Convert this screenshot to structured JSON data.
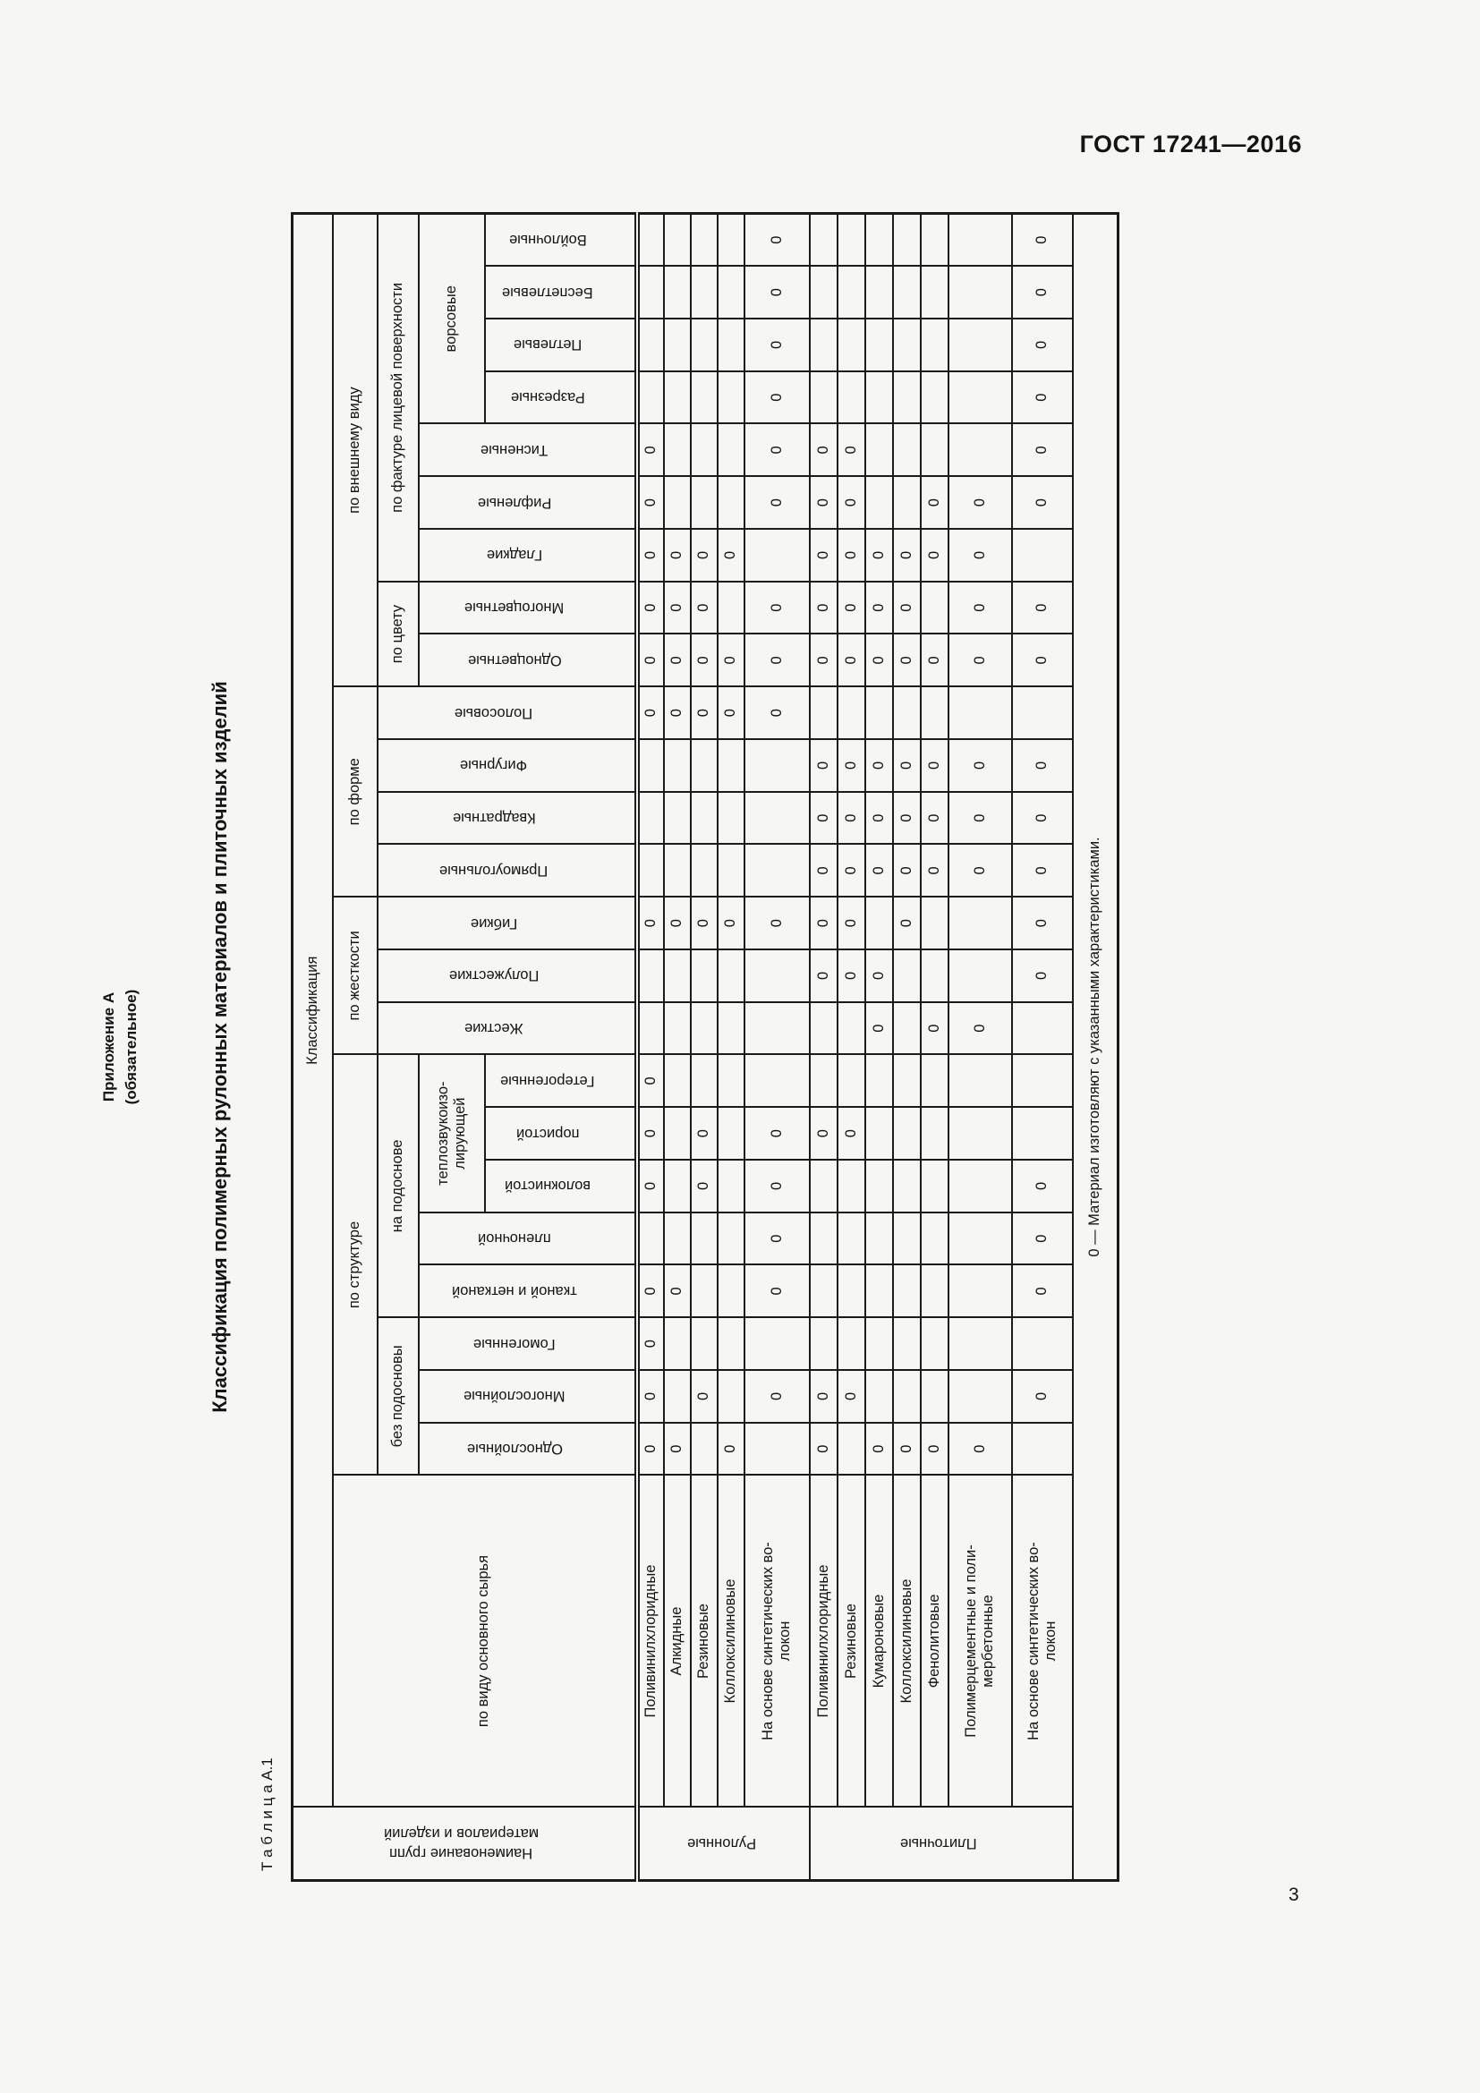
{
  "page": {
    "doc_number": "ГОСТ 17241—2016",
    "page_number": "3"
  },
  "appendix": {
    "title": "Приложение А",
    "subtitle": "(обязательное)"
  },
  "main_title": "Классификация полимерных рулонных материалов и плиточных изделий",
  "table_caption": "Т а б л и ц а   А.1",
  "table": {
    "mark": "0",
    "footnote": "0 — Материал изготовляют с указанными характеристиками.",
    "col1_header_lines": [
      "Наименование групп",
      "материалов и изделий"
    ],
    "col2_header": "по виду основного сырья",
    "classification": "Классификация",
    "groups": {
      "structure": "по структуре",
      "rigidity": "по жесткости",
      "shape": "по форме",
      "appearance": "по внешнему виду",
      "no_backing": "без подосновы",
      "on_backing": "на подоснове",
      "heat_sound_lines": [
        "теплозвукоизо-",
        "лирующей"
      ],
      "color": "по цвету",
      "texture": "по фактуре лицевой поверхности",
      "pile": "ворсовые"
    },
    "columns": [
      "Однослойные",
      "Многослойные",
      "Гомогенные",
      "тканой и нетканой",
      "пленочной",
      "волокнистой",
      "пористой",
      "Гетерогенные",
      "Жесткие",
      "Полужесткие",
      "Гибкие",
      "Прямоугольные",
      "Квадратные",
      "Фигурные",
      "Полосовые",
      "Одноцветные",
      "Многоцветные",
      "Гладкие",
      "Рифленые",
      "Тисненые",
      "Разрезные",
      "Петлевые",
      "Беспетлевые",
      "Войлочные"
    ],
    "row_groups": [
      {
        "name": "Рулонные",
        "materials": [
          {
            "name_lines": [
              "Поливинилхлоридные"
            ],
            "h": 30,
            "marks": [
              1,
              1,
              1,
              1,
              0,
              1,
              1,
              1,
              0,
              0,
              1,
              0,
              0,
              0,
              1,
              1,
              1,
              1,
              1,
              1,
              0,
              0,
              0,
              0
            ]
          },
          {
            "name_lines": [
              "Алкидные"
            ],
            "h": 30,
            "marks": [
              1,
              0,
              0,
              1,
              0,
              0,
              0,
              0,
              0,
              0,
              1,
              0,
              0,
              0,
              1,
              1,
              1,
              1,
              0,
              0,
              0,
              0,
              0,
              0
            ]
          },
          {
            "name_lines": [
              "Резиновые"
            ],
            "h": 30,
            "marks": [
              0,
              1,
              0,
              0,
              0,
              1,
              1,
              0,
              0,
              0,
              1,
              0,
              0,
              0,
              1,
              1,
              1,
              1,
              0,
              0,
              0,
              0,
              0,
              0
            ]
          },
          {
            "name_lines": [
              "Коллоксилиновые"
            ],
            "h": 30,
            "marks": [
              1,
              0,
              0,
              0,
              0,
              0,
              0,
              0,
              0,
              0,
              1,
              0,
              0,
              0,
              1,
              1,
              0,
              1,
              0,
              0,
              0,
              0,
              0,
              0
            ]
          },
          {
            "name_lines": [
              "На основе синтетических во-",
              "локон"
            ],
            "h": 73,
            "marks": [
              0,
              1,
              0,
              1,
              1,
              1,
              1,
              0,
              0,
              0,
              1,
              0,
              0,
              0,
              1,
              1,
              1,
              0,
              1,
              1,
              1,
              1,
              1,
              1
            ]
          }
        ]
      },
      {
        "name": "Плиточные",
        "materials": [
          {
            "name_lines": [
              "Поливинилхлоридные"
            ],
            "h": 31,
            "marks": [
              1,
              1,
              0,
              0,
              0,
              0,
              1,
              0,
              0,
              1,
              1,
              1,
              1,
              1,
              0,
              1,
              1,
              1,
              1,
              1,
              0,
              0,
              0,
              0
            ]
          },
          {
            "name_lines": [
              "Резиновые"
            ],
            "h": 31,
            "marks": [
              0,
              1,
              0,
              0,
              0,
              0,
              1,
              0,
              0,
              1,
              1,
              1,
              1,
              1,
              0,
              1,
              1,
              1,
              1,
              1,
              0,
              0,
              0,
              0
            ]
          },
          {
            "name_lines": [
              "Кумароновые"
            ],
            "h": 31,
            "marks": [
              1,
              0,
              0,
              0,
              0,
              0,
              0,
              0,
              1,
              1,
              0,
              1,
              1,
              1,
              0,
              1,
              1,
              1,
              0,
              0,
              0,
              0,
              0,
              0
            ]
          },
          {
            "name_lines": [
              "Коллоксилиновые"
            ],
            "h": 31,
            "marks": [
              1,
              0,
              0,
              0,
              0,
              0,
              0,
              0,
              0,
              0,
              1,
              1,
              1,
              1,
              0,
              1,
              1,
              1,
              0,
              0,
              0,
              0,
              0,
              0
            ]
          },
          {
            "name_lines": [
              "Фенолитовые"
            ],
            "h": 31,
            "marks": [
              1,
              0,
              0,
              0,
              0,
              0,
              0,
              0,
              1,
              0,
              0,
              1,
              1,
              1,
              0,
              1,
              0,
              1,
              1,
              0,
              0,
              0,
              0,
              0
            ]
          },
          {
            "name_lines": [
              "Полимерцементные  и  поли-",
              "мербетонные"
            ],
            "h": 71,
            "marks": [
              1,
              0,
              0,
              0,
              0,
              0,
              0,
              0,
              1,
              0,
              0,
              1,
              1,
              1,
              0,
              1,
              1,
              1,
              1,
              0,
              0,
              0,
              0,
              0
            ]
          },
          {
            "name_lines": [
              "На основе синтетических во-",
              "локон"
            ],
            "h": 68,
            "marks": [
              0,
              1,
              0,
              1,
              1,
              1,
              0,
              0,
              0,
              1,
              1,
              1,
              1,
              1,
              0,
              1,
              1,
              0,
              1,
              1,
              1,
              1,
              1,
              1
            ]
          }
        ]
      }
    ]
  }
}
